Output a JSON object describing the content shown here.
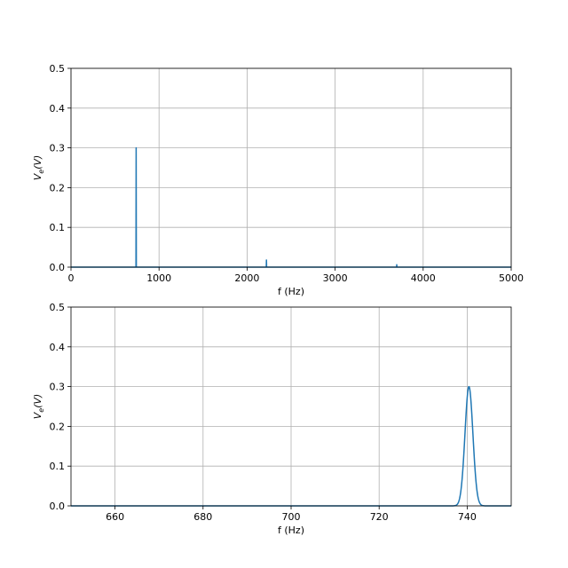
{
  "chart_data": [
    {
      "type": "line",
      "title": "",
      "xlabel": "f (Hz)",
      "ylabel_main": "V",
      "ylabel_sub": "e",
      "ylabel_rest": "(V)",
      "xlim": [
        0,
        5000
      ],
      "ylim": [
        0,
        0.5
      ],
      "xticks": [
        0,
        1000,
        2000,
        3000,
        4000,
        5000
      ],
      "yticks": [
        0.0,
        0.1,
        0.2,
        0.3,
        0.4,
        0.5
      ],
      "xtick_labels": [
        "0",
        "1000",
        "2000",
        "3000",
        "4000",
        "5000"
      ],
      "ytick_labels": [
        "0.0",
        "0.1",
        "0.2",
        "0.3",
        "0.4",
        "0.5"
      ],
      "grid": true,
      "color": "#1f77b4",
      "peaks": [
        {
          "x": 740,
          "y": 0.3
        },
        {
          "x": 2220,
          "y": 0.018
        },
        {
          "x": 3700,
          "y": 0.006
        }
      ],
      "peak_width_hz": 4
    },
    {
      "type": "line",
      "title": "",
      "xlabel": "f (Hz)",
      "ylabel_main": "V",
      "ylabel_sub": "e",
      "ylabel_rest": "(V)",
      "xlim": [
        650,
        750
      ],
      "ylim": [
        0,
        0.5
      ],
      "xticks": [
        660,
        680,
        700,
        720,
        740
      ],
      "yticks": [
        0.0,
        0.1,
        0.2,
        0.3,
        0.4,
        0.5
      ],
      "xtick_labels": [
        "660",
        "680",
        "700",
        "720",
        "740"
      ],
      "ytick_labels": [
        "0.0",
        "0.1",
        "0.2",
        "0.3",
        "0.4",
        "0.5"
      ],
      "grid": true,
      "color": "#1f77b4",
      "peaks": [
        {
          "x": 740.4,
          "y": 0.3
        }
      ],
      "peak_sigma_hz": 0.9
    }
  ]
}
